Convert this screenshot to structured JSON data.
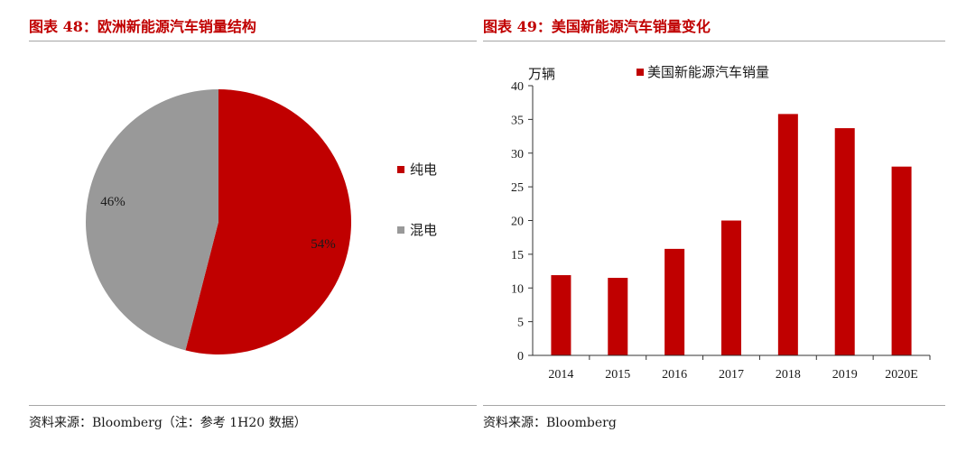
{
  "left": {
    "title": "图表 48：欧洲新能源汽车销量结构",
    "source": "资料来源：Bloomberg（注：参考 1H20 数据）"
  },
  "right": {
    "title": "图表 49：美国新能源汽车销量变化",
    "source": "资料来源：Bloomberg"
  },
  "colors": {
    "red": "#c00000",
    "gray": "#999999",
    "title": "#c00000"
  },
  "chart_data": [
    {
      "type": "pie",
      "title": "",
      "slices": [
        {
          "label": "纯电",
          "value": 54,
          "display": "54%",
          "color": "#c00000"
        },
        {
          "label": "混电",
          "value": 46,
          "display": "46%",
          "color": "#999999"
        }
      ],
      "legend_position": "right"
    },
    {
      "type": "bar",
      "title": "",
      "unit": "万辆",
      "ylabel": "万辆",
      "xlabel": "",
      "categories": [
        "2014",
        "2015",
        "2016",
        "2017",
        "2018",
        "2019",
        "2020E"
      ],
      "series": [
        {
          "name": "美国新能源汽车销量",
          "color": "#c00000",
          "values": [
            11.9,
            11.5,
            15.8,
            20.0,
            35.8,
            33.7,
            28.0
          ]
        }
      ],
      "ylim": [
        0,
        40
      ],
      "yticks": [
        0,
        5,
        10,
        15,
        20,
        25,
        30,
        35,
        40
      ],
      "legend_position": "top"
    }
  ]
}
